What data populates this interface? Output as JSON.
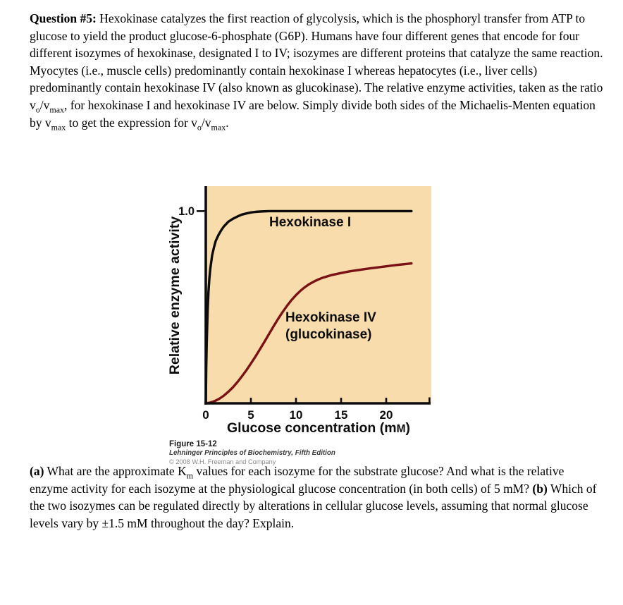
{
  "question": {
    "segments": [
      {
        "t": "Question #5:",
        "b": true
      },
      {
        "t": " Hexokinase catalyzes the first reaction of glycolysis, which is the phosphoryl transfer from ATP to glucose to yield the product glucose-6-phosphate (G6P). Humans have four different genes that encode for four different isozymes of hexokinase, designated I to IV; isozymes are different proteins that catalyze the same reaction. Myocytes (i.e., muscle cells) predominantly contain hexokinase I whereas hepatocytes (i.e., liver cells) predominantly contain hexokinase IV (also known as glucokinase). The relative enzyme activities, taken as the ratio v"
      },
      {
        "t": "o",
        "sub": true
      },
      {
        "t": "/v"
      },
      {
        "t": "max",
        "sub": true
      },
      {
        "t": ", for hexokinase I and hexokinase IV are below.  Simply divide both sides of the Michaelis-Menten equation by v"
      },
      {
        "t": "max",
        "sub": true
      },
      {
        "t": " to get the expression for v"
      },
      {
        "t": "o",
        "sub": true
      },
      {
        "t": "/v"
      },
      {
        "t": "max",
        "sub": true
      },
      {
        "t": "."
      }
    ]
  },
  "figure": {
    "caption_title": "Figure 15-12",
    "caption_source": "Lehninger Principles of Biochemistry, Fifth Edition",
    "caption_copyright": "© 2008 W.H. Freeman and Company"
  },
  "chart_data": {
    "type": "line",
    "title": "",
    "xlabel": "Glucose concentration (mM)",
    "xlabel_parts": {
      "pre": "Glucose concentration (m",
      "sc": "M",
      "post": ")"
    },
    "ylabel": "Relative enzyme activity",
    "xlim": [
      0,
      25
    ],
    "ylim": [
      0,
      1.13
    ],
    "x_ticks": [
      0,
      5,
      10,
      15,
      20
    ],
    "y_ticks": [
      1.0
    ],
    "y_tick_label": "1.0",
    "grid": false,
    "legend_position": "labels-on-curves",
    "plot_bg": "#F8DCAB",
    "curve_labels": [
      "Hexokinase I",
      "Hexokinase IV",
      "(glucokinase)"
    ],
    "series": [
      {
        "name": "Hexokinase I",
        "color": "#0b0b0b",
        "points": [
          [
            0,
            0
          ],
          [
            0.05,
            0.18
          ],
          [
            0.1,
            0.31
          ],
          [
            0.2,
            0.48
          ],
          [
            0.3,
            0.58
          ],
          [
            0.4,
            0.65
          ],
          [
            0.5,
            0.7
          ],
          [
            0.7,
            0.77
          ],
          [
            0.9,
            0.81
          ],
          [
            1.1,
            0.845
          ],
          [
            1.4,
            0.875
          ],
          [
            1.7,
            0.9
          ],
          [
            2.0,
            0.92
          ],
          [
            2.5,
            0.945
          ],
          [
            3.0,
            0.96
          ],
          [
            3.5,
            0.972
          ],
          [
            4.0,
            0.982
          ],
          [
            4.5,
            0.988
          ],
          [
            5.0,
            0.993
          ],
          [
            5.5,
            0.996
          ],
          [
            6.0,
            0.998
          ],
          [
            7.0,
            1.0
          ],
          [
            22.8,
            1.0
          ]
        ]
      },
      {
        "name": "Hexokinase IV (glucokinase)",
        "color": "#7a1114",
        "points": [
          [
            0,
            0
          ],
          [
            0.5,
            0.004
          ],
          [
            1,
            0.012
          ],
          [
            1.5,
            0.024
          ],
          [
            2,
            0.04
          ],
          [
            2.5,
            0.06
          ],
          [
            3,
            0.083
          ],
          [
            3.5,
            0.11
          ],
          [
            4,
            0.14
          ],
          [
            4.5,
            0.172
          ],
          [
            5,
            0.207
          ],
          [
            5.5,
            0.243
          ],
          [
            6,
            0.281
          ],
          [
            6.5,
            0.32
          ],
          [
            7,
            0.36
          ],
          [
            7.5,
            0.4
          ],
          [
            8,
            0.438
          ],
          [
            8.5,
            0.474
          ],
          [
            9,
            0.507
          ],
          [
            9.5,
            0.537
          ],
          [
            10,
            0.563
          ],
          [
            10.5,
            0.586
          ],
          [
            11,
            0.605
          ],
          [
            11.5,
            0.621
          ],
          [
            12,
            0.634
          ],
          [
            12.5,
            0.645
          ],
          [
            13,
            0.654
          ],
          [
            14,
            0.668
          ],
          [
            15,
            0.678
          ],
          [
            16,
            0.687
          ],
          [
            17,
            0.694
          ],
          [
            18,
            0.701
          ],
          [
            19,
            0.707
          ],
          [
            20,
            0.713
          ],
          [
            21,
            0.719
          ],
          [
            22,
            0.724
          ],
          [
            22.8,
            0.728
          ]
        ]
      }
    ]
  },
  "questions_ab": {
    "segments": [
      {
        "t": "(a)",
        "b": true
      },
      {
        "t": " What are the approximate K"
      },
      {
        "t": "m",
        "sub": true
      },
      {
        "t": " values for each isozyme for the substrate glucose? And what is the relative enzyme activity for each isozyme at the physiological glucose concentration (in both cells) of 5 mM? "
      },
      {
        "t": "(b)",
        "b": true
      },
      {
        "t": " Which of the two isozymes can be regulated directly by alterations in cellular glucose levels, assuming that normal glucose levels vary by ±1.5 mM throughout the day? Explain."
      }
    ]
  }
}
